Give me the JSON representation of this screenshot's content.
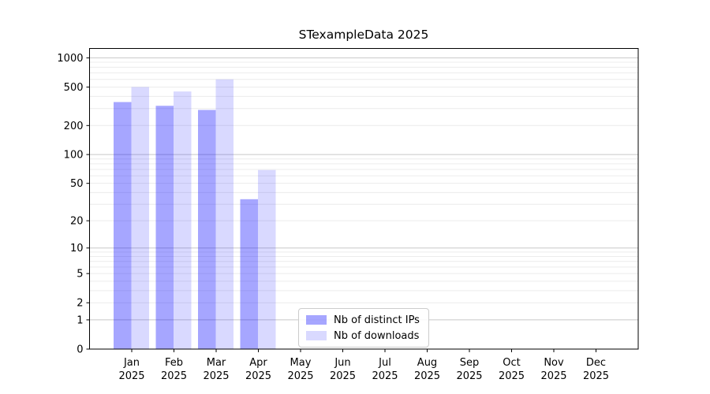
{
  "chart_data": {
    "type": "bar",
    "title": "STexampleData 2025",
    "categories": [
      "Jan",
      "Feb",
      "Mar",
      "Apr",
      "May",
      "Jun",
      "Jul",
      "Aug",
      "Sep",
      "Oct",
      "Nov",
      "Dec"
    ],
    "x_year_label": "2025",
    "series": [
      {
        "key": "distinct-ips",
        "name": "Nb of distinct IPs",
        "color": "rgba(0,0,255,0.35)",
        "color_on_white": "#a6a6ff",
        "values": [
          350,
          320,
          290,
          34,
          null,
          null,
          null,
          null,
          null,
          null,
          null,
          null
        ]
      },
      {
        "key": "downloads",
        "name": "Nb of downloads",
        "color": "rgba(0,0,255,0.15)",
        "color_on_white": "#d9d9ff",
        "values": [
          500,
          450,
          600,
          69,
          null,
          null,
          null,
          null,
          null,
          null,
          null,
          null
        ]
      }
    ],
    "y_axis": {
      "scale": "log1p",
      "ticks": [
        0,
        1,
        2,
        5,
        10,
        20,
        50,
        100,
        200,
        500,
        1000
      ],
      "max": 1250
    },
    "grid": {
      "major_lines": [
        1,
        10,
        100,
        1000
      ],
      "minor_lines": [
        2,
        3,
        4,
        5,
        6,
        7,
        8,
        9,
        20,
        30,
        40,
        50,
        60,
        70,
        80,
        90,
        200,
        300,
        400,
        500,
        600,
        700,
        800,
        900
      ],
      "major_color": "#c8c8c8",
      "minor_color": "#ececec"
    },
    "legend": {
      "position": "lower-center",
      "entries": [
        "Nb of distinct IPs",
        "Nb of downloads"
      ]
    }
  }
}
